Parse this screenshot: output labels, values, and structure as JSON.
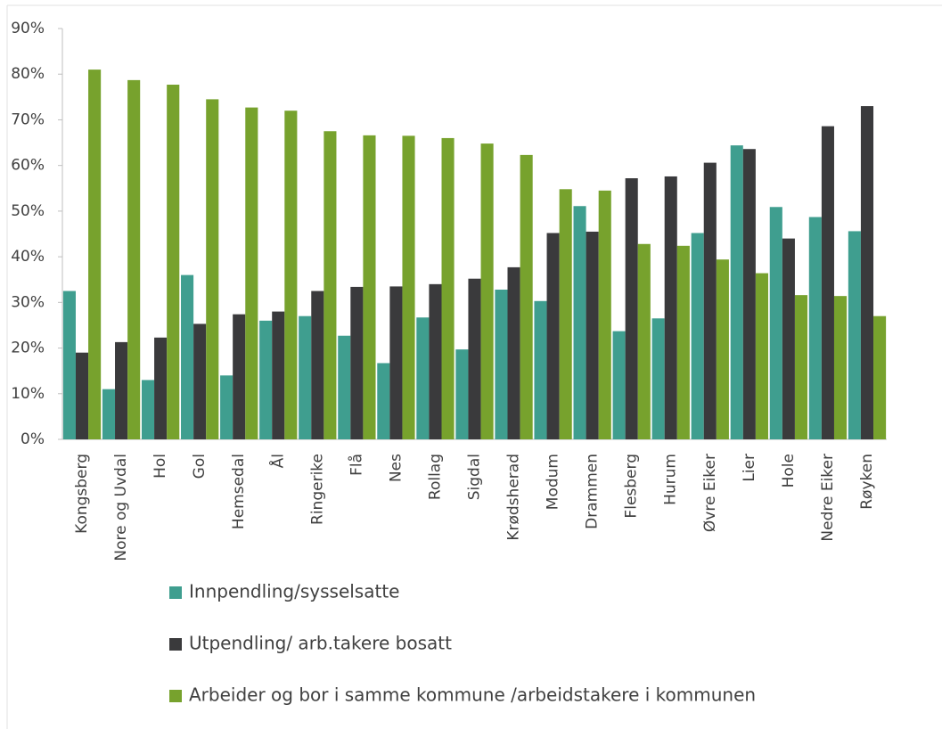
{
  "chart_data": {
    "type": "bar",
    "categories": [
      "Kongsberg",
      "Nore og Uvdal",
      "Hol",
      "Gol",
      "Hemsedal",
      "Ål",
      "Ringerike",
      "Flå",
      "Nes",
      "Rollag",
      "Sigdal",
      "Krødsherad",
      "Modum",
      "Drammen",
      "Flesberg",
      "Hurum",
      "Øvre Eiker",
      "Lier",
      "Hole",
      "Nedre Eiker",
      "Røyken"
    ],
    "series": [
      {
        "name": "Innpendling/sysselsatte",
        "color": "#3f9e8f",
        "values": [
          32.5,
          11,
          13,
          36,
          14,
          26,
          27,
          22.7,
          16.7,
          26.7,
          19.7,
          32.8,
          30.3,
          51.1,
          23.7,
          26.5,
          45.2,
          64.4,
          50.9,
          48.7,
          45.6
        ]
      },
      {
        "name": "Utpendling/ arb.takere bosatt",
        "color": "#3a3a3c",
        "values": [
          19,
          21.3,
          22.3,
          25.3,
          27.4,
          28,
          32.5,
          33.4,
          33.5,
          34,
          35.2,
          37.7,
          45.2,
          45.5,
          57.2,
          57.6,
          60.6,
          63.6,
          44,
          68.6,
          73
        ]
      },
      {
        "name": "Arbeider og bor i samme kommune /arbeidstakere i kommunen",
        "color": "#77a22d",
        "values": [
          81,
          78.7,
          77.7,
          74.5,
          72.7,
          72,
          67.5,
          66.6,
          66.5,
          66,
          64.8,
          62.3,
          54.8,
          54.5,
          42.8,
          42.4,
          39.4,
          36.4,
          31.6,
          31.4,
          27
        ]
      }
    ],
    "ylim": [
      0,
      90
    ],
    "yticks": [
      {
        "value": 0,
        "label": "0%"
      },
      {
        "value": 10,
        "label": "10%"
      },
      {
        "value": 20,
        "label": "20%"
      },
      {
        "value": 30,
        "label": "30%"
      },
      {
        "value": 40,
        "label": "40%"
      },
      {
        "value": 50,
        "label": "50%"
      },
      {
        "value": 60,
        "label": "60%"
      },
      {
        "value": 70,
        "label": "70%"
      },
      {
        "value": 80,
        "label": "80%"
      },
      {
        "value": 90,
        "label": "90%"
      }
    ],
    "grid": false,
    "legend": "bottom"
  }
}
